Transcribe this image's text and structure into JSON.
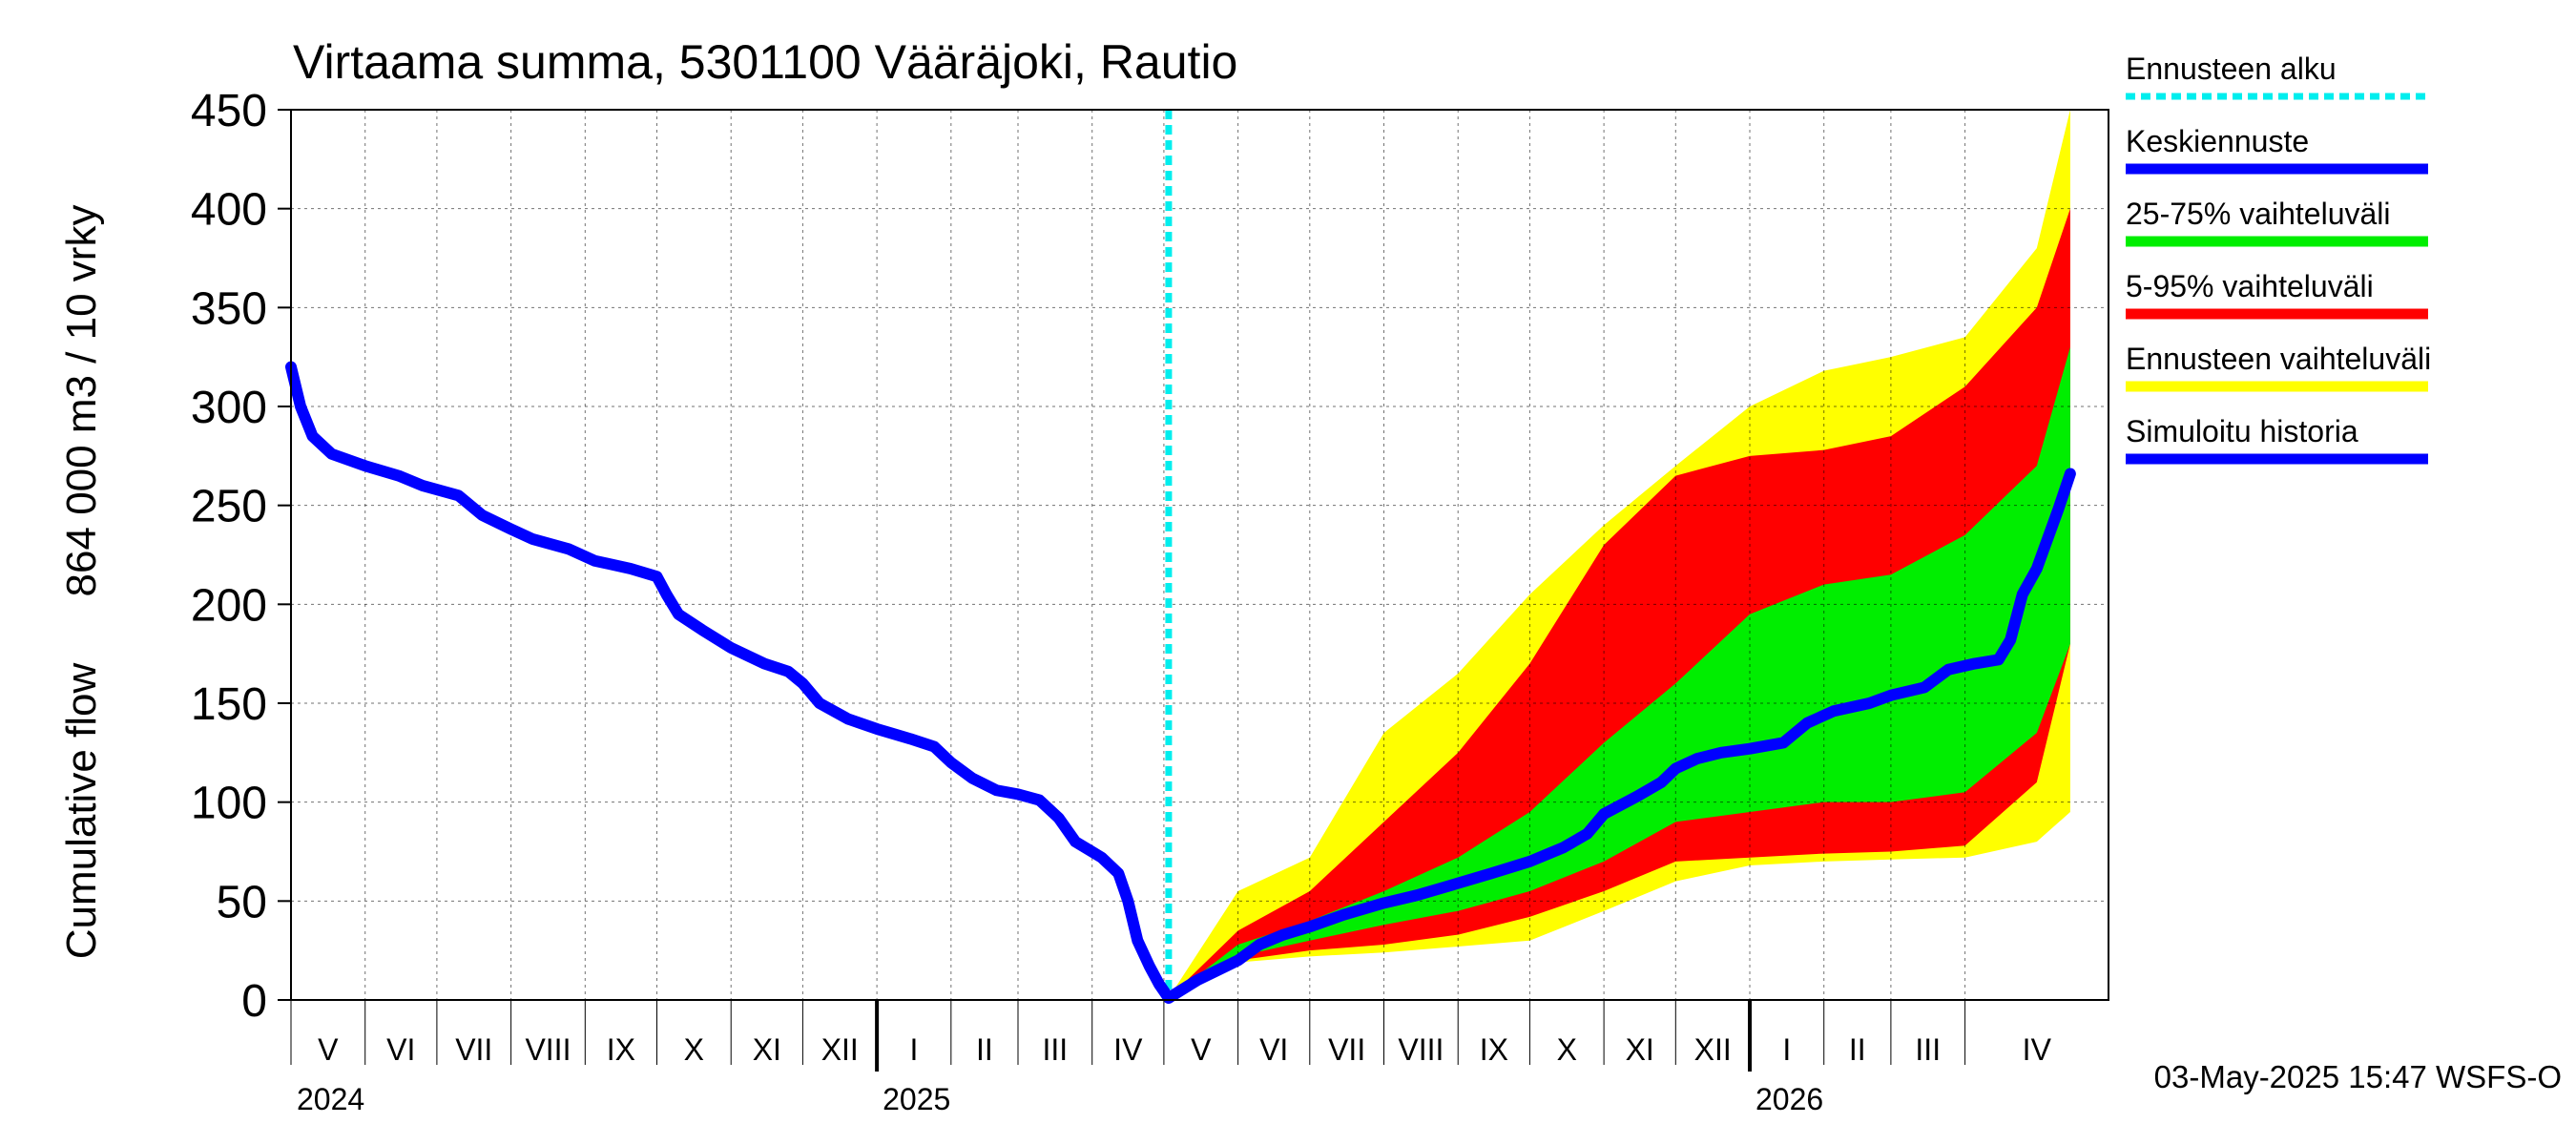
{
  "chart_data": {
    "type": "area",
    "title": "Virtaama summa, 5301100 Vääräjoki, Rautio",
    "ylabel_top": "864 000 m3 / 10 vrky",
    "ylabel_bottom": "Cumulative flow",
    "ylim": [
      0,
      450
    ],
    "yticks": [
      0,
      50,
      100,
      150,
      200,
      250,
      300,
      350,
      400,
      450
    ],
    "x_start": "2024-05-01",
    "x_end": "2026-05-31",
    "forecast_start": "2025-05-03",
    "grid": true,
    "months": [
      {
        "label": "V",
        "start": "2024-05-01"
      },
      {
        "label": "VI",
        "start": "2024-06-01"
      },
      {
        "label": "VII",
        "start": "2024-07-01"
      },
      {
        "label": "VIII",
        "start": "2024-08-01"
      },
      {
        "label": "IX",
        "start": "2024-09-01"
      },
      {
        "label": "X",
        "start": "2024-10-01"
      },
      {
        "label": "XI",
        "start": "2024-11-01"
      },
      {
        "label": "XII",
        "start": "2024-12-01"
      },
      {
        "label": "I",
        "start": "2025-01-01"
      },
      {
        "label": "II",
        "start": "2025-02-01"
      },
      {
        "label": "III",
        "start": "2025-03-01"
      },
      {
        "label": "IV",
        "start": "2025-04-01"
      },
      {
        "label": "V",
        "start": "2025-05-01"
      },
      {
        "label": "VI",
        "start": "2025-06-01"
      },
      {
        "label": "VII",
        "start": "2025-07-01"
      },
      {
        "label": "VIII",
        "start": "2025-08-01"
      },
      {
        "label": "IX",
        "start": "2025-09-01"
      },
      {
        "label": "X",
        "start": "2025-10-01"
      },
      {
        "label": "XI",
        "start": "2025-11-01"
      },
      {
        "label": "XII",
        "start": "2025-12-01"
      },
      {
        "label": "I",
        "start": "2026-01-01"
      },
      {
        "label": "II",
        "start": "2026-02-01"
      },
      {
        "label": "III",
        "start": "2026-03-01"
      },
      {
        "label": "IV",
        "start": "2026-04-01"
      }
    ],
    "years": [
      {
        "label": "2024",
        "start": "2024-05-01"
      },
      {
        "label": "2025",
        "start": "2025-01-01"
      },
      {
        "label": "2026",
        "start": "2026-01-01"
      }
    ],
    "colors": {
      "forecast_start": "#00eeee",
      "median": "#0000ff",
      "band_25_75": "#00ee00",
      "band_5_95": "#ff0000",
      "band_full": "#ffff00",
      "history": "#0000ff"
    },
    "legend": [
      {
        "label": "Ennusteen alku",
        "color": "#00eeee",
        "style": "dashed"
      },
      {
        "label": "Keskiennuste",
        "color": "#0000ff",
        "style": "solid"
      },
      {
        "label": "25-75% vaihteluväli",
        "color": "#00ee00",
        "style": "solid"
      },
      {
        "label": "5-95% vaihteluväli",
        "color": "#ff0000",
        "style": "solid"
      },
      {
        "label": "Ennusteen vaihteluväli",
        "color": "#ffff00",
        "style": "solid"
      },
      {
        "label": "Simuloitu historia",
        "color": "#0000ff",
        "style": "solid"
      }
    ],
    "history": [
      [
        "2024-05-01",
        320
      ],
      [
        "2024-05-05",
        300
      ],
      [
        "2024-05-10",
        285
      ],
      [
        "2024-05-18",
        276
      ],
      [
        "2024-06-01",
        270
      ],
      [
        "2024-06-15",
        265
      ],
      [
        "2024-06-25",
        260
      ],
      [
        "2024-07-10",
        255
      ],
      [
        "2024-07-20",
        245
      ],
      [
        "2024-08-01",
        238
      ],
      [
        "2024-08-10",
        233
      ],
      [
        "2024-08-25",
        228
      ],
      [
        "2024-09-05",
        222
      ],
      [
        "2024-09-20",
        218
      ],
      [
        "2024-10-01",
        214
      ],
      [
        "2024-10-05",
        205
      ],
      [
        "2024-10-10",
        195
      ],
      [
        "2024-10-20",
        187
      ],
      [
        "2024-11-01",
        178
      ],
      [
        "2024-11-15",
        170
      ],
      [
        "2024-11-25",
        166
      ],
      [
        "2024-12-01",
        160
      ],
      [
        "2024-12-08",
        150
      ],
      [
        "2024-12-20",
        142
      ],
      [
        "2025-01-01",
        137
      ],
      [
        "2025-01-15",
        132
      ],
      [
        "2025-01-25",
        128
      ],
      [
        "2025-02-01",
        120
      ],
      [
        "2025-02-10",
        112
      ],
      [
        "2025-02-20",
        106
      ],
      [
        "2025-03-01",
        104
      ],
      [
        "2025-03-10",
        101
      ],
      [
        "2025-03-18",
        92
      ],
      [
        "2025-03-25",
        80
      ],
      [
        "2025-04-05",
        72
      ],
      [
        "2025-04-12",
        64
      ],
      [
        "2025-04-16",
        50
      ],
      [
        "2025-04-20",
        30
      ],
      [
        "2025-04-25",
        17
      ],
      [
        "2025-04-29",
        8
      ],
      [
        "2025-05-03",
        1
      ]
    ],
    "median": [
      [
        "2025-05-03",
        1
      ],
      [
        "2025-05-15",
        10
      ],
      [
        "2025-06-01",
        20
      ],
      [
        "2025-06-10",
        28
      ],
      [
        "2025-06-20",
        33
      ],
      [
        "2025-07-01",
        37
      ],
      [
        "2025-07-15",
        43
      ],
      [
        "2025-08-01",
        49
      ],
      [
        "2025-08-15",
        53
      ],
      [
        "2025-09-01",
        59
      ],
      [
        "2025-09-15",
        64
      ],
      [
        "2025-10-01",
        70
      ],
      [
        "2025-10-15",
        77
      ],
      [
        "2025-10-25",
        84
      ],
      [
        "2025-11-01",
        94
      ],
      [
        "2025-11-15",
        103
      ],
      [
        "2025-11-25",
        110
      ],
      [
        "2025-12-01",
        117
      ],
      [
        "2025-12-10",
        122
      ],
      [
        "2025-12-20",
        125
      ],
      [
        "2026-01-01",
        127
      ],
      [
        "2026-01-15",
        130
      ],
      [
        "2026-01-25",
        140
      ],
      [
        "2026-02-05",
        146
      ],
      [
        "2026-02-20",
        150
      ],
      [
        "2026-03-01",
        154
      ],
      [
        "2026-03-15",
        158
      ],
      [
        "2026-03-25",
        167
      ],
      [
        "2026-04-05",
        170
      ],
      [
        "2026-04-15",
        172
      ],
      [
        "2026-04-20",
        182
      ],
      [
        "2026-04-25",
        205
      ],
      [
        "2026-05-01",
        218
      ],
      [
        "2026-05-10",
        248
      ],
      [
        "2026-05-15",
        266
      ]
    ],
    "band_full": {
      "x": [
        "2025-05-03",
        "2025-06-01",
        "2025-07-01",
        "2025-08-01",
        "2025-09-01",
        "2025-10-01",
        "2025-11-01",
        "2025-12-01",
        "2026-01-01",
        "2026-02-01",
        "2026-03-01",
        "2026-04-01",
        "2026-05-01",
        "2026-05-15"
      ],
      "low": [
        1,
        19,
        22,
        24,
        27,
        30,
        45,
        60,
        68,
        70,
        71,
        72,
        80,
        95
      ],
      "high": [
        1,
        55,
        72,
        135,
        165,
        205,
        240,
        270,
        300,
        318,
        325,
        335,
        380,
        450
      ]
    },
    "band_5_95": {
      "x": [
        "2025-05-03",
        "2025-06-01",
        "2025-07-01",
        "2025-08-01",
        "2025-09-01",
        "2025-10-01",
        "2025-11-01",
        "2025-12-01",
        "2026-01-01",
        "2026-02-01",
        "2026-03-01",
        "2026-04-01",
        "2026-05-01",
        "2026-05-15"
      ],
      "low": [
        1,
        20,
        25,
        28,
        33,
        42,
        55,
        70,
        72,
        74,
        75,
        78,
        110,
        180
      ],
      "high": [
        1,
        35,
        55,
        90,
        125,
        170,
        230,
        265,
        275,
        278,
        285,
        310,
        350,
        400
      ]
    },
    "band_25_75": {
      "x": [
        "2025-05-03",
        "2025-06-01",
        "2025-07-01",
        "2025-08-01",
        "2025-09-01",
        "2025-10-01",
        "2025-11-01",
        "2025-12-01",
        "2026-01-01",
        "2026-02-01",
        "2026-03-01",
        "2026-04-01",
        "2026-05-01",
        "2026-05-15"
      ],
      "low": [
        1,
        22,
        30,
        38,
        45,
        55,
        70,
        90,
        95,
        100,
        100,
        105,
        135,
        180
      ],
      "high": [
        1,
        28,
        40,
        55,
        72,
        95,
        130,
        160,
        195,
        210,
        215,
        235,
        270,
        330
      ]
    },
    "footer": "03-May-2025 15:47 WSFS-O"
  }
}
